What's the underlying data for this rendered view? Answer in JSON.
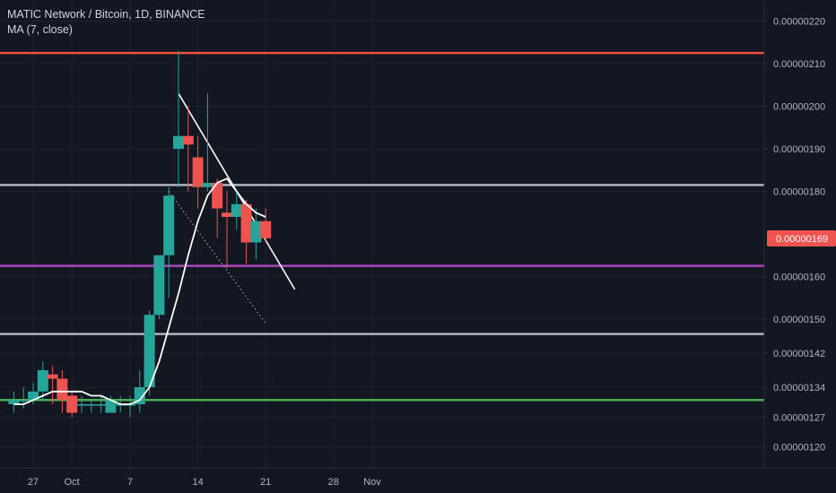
{
  "legend": {
    "title": "MATIC Network / Bitcoin, 1D, BINANCE",
    "indicator": "MA (7, close)"
  },
  "price_badge": {
    "value": "0.00000169",
    "color": "#f05350"
  },
  "colors": {
    "background": "#131722",
    "up": "#26a69a",
    "down": "#ef5350",
    "ma": "#ffffff",
    "grid": "#1e2230",
    "axis_text": "#b2b5be"
  },
  "chart_data": {
    "type": "candlestick",
    "symbol": "MATIC Network / Bitcoin",
    "interval": "1D",
    "exchange": "BINANCE",
    "ylim": [
      1.18e-06,
      2.22e-06
    ],
    "xlim": [
      "2019-09-25",
      "2019-11-05"
    ],
    "y_ticks": [
      {
        "value": 2.2e-06,
        "label": "0.00000220"
      },
      {
        "value": 2.1e-06,
        "label": "0.00000210"
      },
      {
        "value": 2e-06,
        "label": "0.00000200"
      },
      {
        "value": 1.9e-06,
        "label": "0.00000190"
      },
      {
        "value": 1.8e-06,
        "label": "0.00000180"
      },
      {
        "value": 1.69e-06,
        "label": "0.00000169"
      },
      {
        "value": 1.6e-06,
        "label": "0.00000160"
      },
      {
        "value": 1.5e-06,
        "label": "0.00000150"
      },
      {
        "value": 1.42e-06,
        "label": "0.00000142"
      },
      {
        "value": 1.34e-06,
        "label": "0.00000134"
      },
      {
        "value": 1.27e-06,
        "label": "0.00000127"
      },
      {
        "value": 1.2e-06,
        "label": "0.00000120"
      }
    ],
    "x_ticks": [
      {
        "date": "2019-09-27",
        "label": "27"
      },
      {
        "date": "2019-10-01",
        "label": "Oct"
      },
      {
        "date": "2019-10-07",
        "label": "7"
      },
      {
        "date": "2019-10-14",
        "label": "14"
      },
      {
        "date": "2019-10-21",
        "label": "21"
      },
      {
        "date": "2019-10-28",
        "label": "28"
      },
      {
        "date": "2019-11-01",
        "label": "Nov"
      }
    ],
    "candles": [
      {
        "date": "2019-09-25",
        "open": 1.3e-06,
        "high": 1.33e-06,
        "low": 1.28e-06,
        "close": 1.31e-06
      },
      {
        "date": "2019-09-26",
        "open": 1.31e-06,
        "high": 1.34e-06,
        "low": 1.29e-06,
        "close": 1.31e-06
      },
      {
        "date": "2019-09-27",
        "open": 1.31e-06,
        "high": 1.35e-06,
        "low": 1.3e-06,
        "close": 1.33e-06
      },
      {
        "date": "2019-09-28",
        "open": 1.33e-06,
        "high": 1.4e-06,
        "low": 1.31e-06,
        "close": 1.38e-06
      },
      {
        "date": "2019-09-29",
        "open": 1.37e-06,
        "high": 1.39e-06,
        "low": 1.3e-06,
        "close": 1.36e-06
      },
      {
        "date": "2019-09-30",
        "open": 1.36e-06,
        "high": 1.38e-06,
        "low": 1.28e-06,
        "close": 1.31e-06
      },
      {
        "date": "2019-10-01",
        "open": 1.32e-06,
        "high": 1.33e-06,
        "low": 1.27e-06,
        "close": 1.28e-06
      },
      {
        "date": "2019-10-02",
        "open": 1.3e-06,
        "high": 1.32e-06,
        "low": 1.28e-06,
        "close": 1.3e-06
      },
      {
        "date": "2019-10-03",
        "open": 1.3e-06,
        "high": 1.31e-06,
        "low": 1.28e-06,
        "close": 1.3e-06
      },
      {
        "date": "2019-10-04",
        "open": 1.3e-06,
        "high": 1.32e-06,
        "low": 1.28e-06,
        "close": 1.3e-06
      },
      {
        "date": "2019-10-05",
        "open": 1.28e-06,
        "high": 1.32e-06,
        "low": 1.28e-06,
        "close": 1.31e-06
      },
      {
        "date": "2019-10-06",
        "open": 1.3e-06,
        "high": 1.32e-06,
        "low": 1.28e-06,
        "close": 1.3e-06
      },
      {
        "date": "2019-10-07",
        "open": 1.3e-06,
        "high": 1.32e-06,
        "low": 1.27e-06,
        "close": 1.3e-06
      },
      {
        "date": "2019-10-08",
        "open": 1.3e-06,
        "high": 1.38e-06,
        "low": 1.28e-06,
        "close": 1.34e-06
      },
      {
        "date": "2019-10-09",
        "open": 1.34e-06,
        "high": 1.52e-06,
        "low": 1.32e-06,
        "close": 1.51e-06
      },
      {
        "date": "2019-10-10",
        "open": 1.51e-06,
        "high": 1.65e-06,
        "low": 1.5e-06,
        "close": 1.65e-06
      },
      {
        "date": "2019-10-11",
        "open": 1.65e-06,
        "high": 1.81e-06,
        "low": 1.55e-06,
        "close": 1.79e-06
      },
      {
        "date": "2019-10-12",
        "open": 1.9e-06,
        "high": 2.13e-06,
        "low": 1.81e-06,
        "close": 1.93e-06
      },
      {
        "date": "2019-10-13",
        "open": 1.93e-06,
        "high": 2e-06,
        "low": 1.8e-06,
        "close": 1.91e-06
      },
      {
        "date": "2019-10-14",
        "open": 1.88e-06,
        "high": 1.93e-06,
        "low": 1.76e-06,
        "close": 1.81e-06
      },
      {
        "date": "2019-10-15",
        "open": 1.81e-06,
        "high": 2.03e-06,
        "low": 1.8e-06,
        "close": 1.82e-06
      },
      {
        "date": "2019-10-16",
        "open": 1.82e-06,
        "high": 1.83e-06,
        "low": 1.69e-06,
        "close": 1.76e-06
      },
      {
        "date": "2019-10-17",
        "open": 1.75e-06,
        "high": 1.8e-06,
        "low": 1.62e-06,
        "close": 1.74e-06
      },
      {
        "date": "2019-10-18",
        "open": 1.74e-06,
        "high": 1.8e-06,
        "low": 1.71e-06,
        "close": 1.77e-06
      },
      {
        "date": "2019-10-19",
        "open": 1.77e-06,
        "high": 1.78e-06,
        "low": 1.63e-06,
        "close": 1.68e-06
      },
      {
        "date": "2019-10-20",
        "open": 1.68e-06,
        "high": 1.76e-06,
        "low": 1.64e-06,
        "close": 1.73e-06
      },
      {
        "date": "2019-10-21",
        "open": 1.73e-06,
        "high": 1.76e-06,
        "low": 1.68e-06,
        "close": 1.69e-06
      }
    ],
    "moving_average": {
      "period": 7,
      "source": "close",
      "values": [
        {
          "date": "2019-09-25",
          "value": 1.3e-06
        },
        {
          "date": "2019-09-26",
          "value": 1.3e-06
        },
        {
          "date": "2019-09-27",
          "value": 1.31e-06
        },
        {
          "date": "2019-09-28",
          "value": 1.32e-06
        },
        {
          "date": "2019-09-29",
          "value": 1.33e-06
        },
        {
          "date": "2019-09-30",
          "value": 1.33e-06
        },
        {
          "date": "2019-10-01",
          "value": 1.33e-06
        },
        {
          "date": "2019-10-02",
          "value": 1.33e-06
        },
        {
          "date": "2019-10-03",
          "value": 1.32e-06
        },
        {
          "date": "2019-10-04",
          "value": 1.32e-06
        },
        {
          "date": "2019-10-05",
          "value": 1.31e-06
        },
        {
          "date": "2019-10-06",
          "value": 1.3e-06
        },
        {
          "date": "2019-10-07",
          "value": 1.3e-06
        },
        {
          "date": "2019-10-08",
          "value": 1.31e-06
        },
        {
          "date": "2019-10-09",
          "value": 1.34e-06
        },
        {
          "date": "2019-10-10",
          "value": 1.4e-06
        },
        {
          "date": "2019-10-11",
          "value": 1.48e-06
        },
        {
          "date": "2019-10-12",
          "value": 1.56e-06
        },
        {
          "date": "2019-10-13",
          "value": 1.65e-06
        },
        {
          "date": "2019-10-14",
          "value": 1.73e-06
        },
        {
          "date": "2019-10-15",
          "value": 1.79e-06
        },
        {
          "date": "2019-10-16",
          "value": 1.82e-06
        },
        {
          "date": "2019-10-17",
          "value": 1.83e-06
        },
        {
          "date": "2019-10-18",
          "value": 1.8e-06
        },
        {
          "date": "2019-10-19",
          "value": 1.77e-06
        },
        {
          "date": "2019-10-20",
          "value": 1.75e-06
        },
        {
          "date": "2019-10-21",
          "value": 1.74e-06
        }
      ]
    },
    "horizontal_lines": [
      {
        "name": "resistance-red",
        "price": 2.125e-06,
        "color": "#f0513b"
      },
      {
        "name": "level-grey-upper",
        "price": 1.815e-06,
        "color": "#b2b5be"
      },
      {
        "name": "support-purple",
        "price": 1.625e-06,
        "color": "#ab47bc"
      },
      {
        "name": "level-grey-lower",
        "price": 1.465e-06,
        "color": "#b2b5be"
      },
      {
        "name": "support-green",
        "price": 1.31e-06,
        "color": "#4caf50"
      }
    ],
    "trend_lines": [
      {
        "name": "descending-trendline",
        "from": {
          "date": "2019-10-12",
          "price": 2.03e-06
        },
        "to": {
          "date": "2019-10-24",
          "price": 1.57e-06
        },
        "color": "#ffffff",
        "style": "solid"
      },
      {
        "name": "dotted-projection",
        "from": {
          "date": "2019-10-11",
          "price": 1.8e-06
        },
        "to": {
          "date": "2019-10-21",
          "price": 1.49e-06
        },
        "color": "#b2b5be",
        "style": "dotted"
      }
    ],
    "grid": true
  }
}
